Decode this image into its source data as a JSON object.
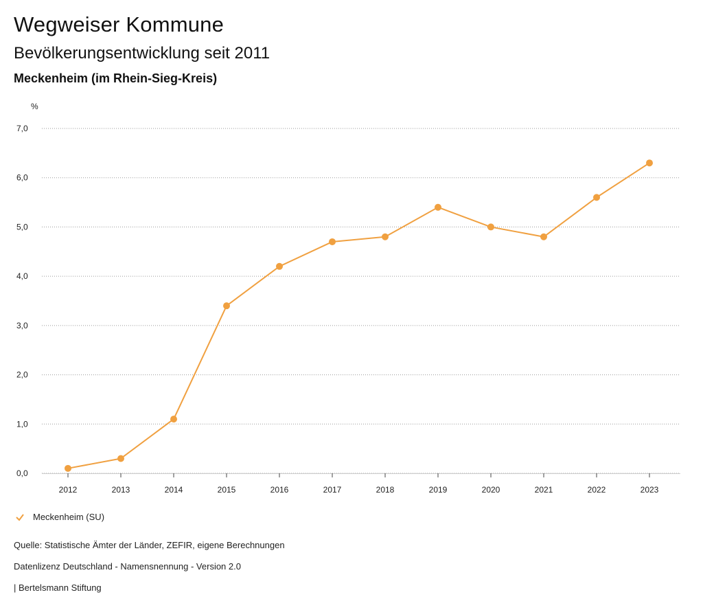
{
  "header": {
    "title": "Wegweiser Kommune",
    "subtitle": "Bevölkerungsentwicklung seit 2011",
    "region": "Meckenheim (im Rhein-Sieg-Kreis)"
  },
  "chart_data": {
    "type": "line",
    "ylabel": "%",
    "categories": [
      "2012",
      "2013",
      "2014",
      "2015",
      "2016",
      "2017",
      "2018",
      "2019",
      "2020",
      "2021",
      "2022",
      "2023"
    ],
    "series": [
      {
        "name": "Meckenheim (SU)",
        "values": [
          0.1,
          0.3,
          1.1,
          3.4,
          4.2,
          4.7,
          4.8,
          5.4,
          5.0,
          4.8,
          5.6,
          6.3
        ]
      }
    ],
    "ylim": [
      0,
      7
    ],
    "yticks": [
      "0,0",
      "1,0",
      "2,0",
      "3,0",
      "4,0",
      "5,0",
      "6,0",
      "7,0"
    ],
    "grid": true,
    "legend_position": "bottom-left",
    "series_color": "#F0A040"
  },
  "legend": {
    "label": "Meckenheim (SU)"
  },
  "footer": {
    "source": "Quelle: Statistische Ämter der Länder, ZEFIR, eigene Berechnungen",
    "license": "Datenlizenz Deutschland - Namensnennung - Version 2.0",
    "publisher": "| Bertelsmann Stiftung"
  }
}
